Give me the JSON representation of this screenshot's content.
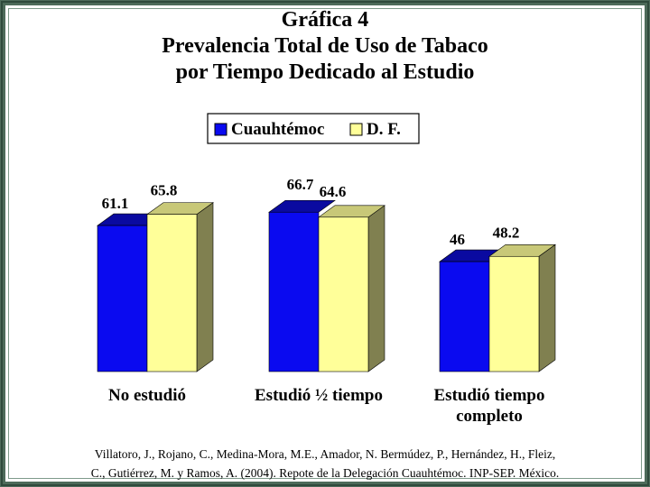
{
  "title_lines": [
    "Gráfica 4",
    "Prevalencia Total de Uso de Tabaco",
    "por Tiempo Dedicado al Estudio"
  ],
  "citation_lines": [
    "Villatoro, J., Rojano, C., Medina-Mora, M.E., Amador, N. Bermúdez, P., Hernández, H., Fleiz,",
    "C., Gutiérrez, M. y Ramos, A. (2004). Repote de la Delegación Cuauhtémoc. INP-SEP. México."
  ],
  "colors": {
    "frame": "#4d6b5a",
    "cuauhtemoc_front": "#0a0af0",
    "cuauhtemoc_top": "#0a0aa0",
    "df_front": "#ffff99",
    "df_top": "#c8c878",
    "side": "#808050"
  },
  "chart_data": {
    "type": "bar",
    "categories": [
      [
        "No estudió"
      ],
      [
        "Estudió ½ tiempo"
      ],
      [
        "Estudió tiempo",
        "completo"
      ]
    ],
    "series": [
      {
        "name": "Cuauhtémoc",
        "values": [
          61.1,
          66.7,
          46
        ],
        "labels": [
          "61.1",
          "66.7",
          "46"
        ]
      },
      {
        "name": "D. F.",
        "values": [
          65.8,
          64.6,
          48.2
        ],
        "labels": [
          "65.8",
          "64.6",
          "48.2"
        ]
      }
    ],
    "legend_position": "top-center",
    "three_d": true,
    "grid": false
  }
}
